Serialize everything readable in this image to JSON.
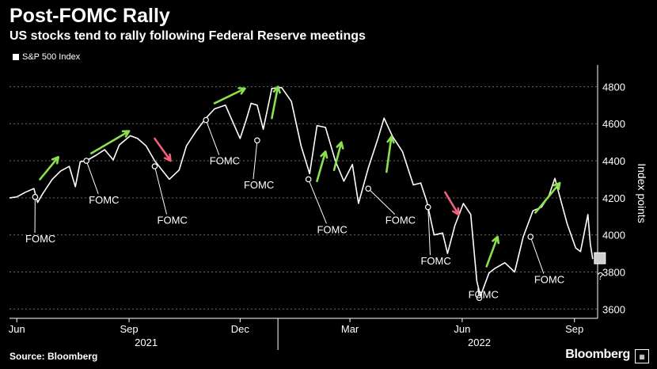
{
  "header": {
    "title": "Post-FOMC Rally",
    "subtitle": "US stocks tend to rally following Federal Reserve meetings"
  },
  "legend": {
    "label": "S&P 500 Index"
  },
  "footer": {
    "source": "Source: Bloomberg",
    "brand": "Bloomberg",
    "badge": "▦"
  },
  "colors": {
    "up_arrow": "#8be04e",
    "down_arrow": "#f0607a",
    "line": "#ffffff",
    "grid": "#6a6a6a"
  },
  "chart_data": {
    "type": "line",
    "ylabel": "Index points",
    "ylim": [
      3550,
      4900
    ],
    "yticks": [
      3600,
      3800,
      4000,
      4200,
      4400,
      4600,
      4800
    ],
    "x_tick_labels": [
      "Jun",
      "Sep",
      "Dec",
      "Mar",
      "Jun",
      "Sep"
    ],
    "x_ticks": [
      "2021-06-01",
      "2021-09-01",
      "2021-12-01",
      "2022-03-01",
      "2022-06-01",
      "2022-09-01"
    ],
    "year_labels": [
      {
        "text": "2021",
        "x": "2021-09-15"
      },
      {
        "text": "2022",
        "x": "2022-06-15"
      }
    ],
    "xlim": [
      "2021-05-26",
      "2022-09-20"
    ],
    "series": [
      {
        "name": "S&P 500 Index",
        "points": [
          [
            "2021-05-26",
            4200
          ],
          [
            "2021-06-01",
            4205
          ],
          [
            "2021-06-08",
            4230
          ],
          [
            "2021-06-15",
            4250
          ],
          [
            "2021-06-18",
            4175
          ],
          [
            "2021-06-22",
            4220
          ],
          [
            "2021-06-30",
            4300
          ],
          [
            "2021-07-07",
            4345
          ],
          [
            "2021-07-14",
            4370
          ],
          [
            "2021-07-19",
            4260
          ],
          [
            "2021-07-23",
            4395
          ],
          [
            "2021-07-28",
            4400
          ],
          [
            "2021-08-05",
            4430
          ],
          [
            "2021-08-12",
            4460
          ],
          [
            "2021-08-19",
            4405
          ],
          [
            "2021-08-24",
            4485
          ],
          [
            "2021-09-02",
            4535
          ],
          [
            "2021-09-08",
            4520
          ],
          [
            "2021-09-15",
            4480
          ],
          [
            "2021-09-22",
            4400
          ],
          [
            "2021-09-28",
            4350
          ],
          [
            "2021-10-04",
            4300
          ],
          [
            "2021-10-12",
            4350
          ],
          [
            "2021-10-18",
            4480
          ],
          [
            "2021-10-26",
            4560
          ],
          [
            "2021-11-03",
            4630
          ],
          [
            "2021-11-10",
            4680
          ],
          [
            "2021-11-19",
            4700
          ],
          [
            "2021-11-26",
            4595
          ],
          [
            "2021-12-01",
            4520
          ],
          [
            "2021-12-06",
            4620
          ],
          [
            "2021-12-10",
            4710
          ],
          [
            "2021-12-15",
            4700
          ],
          [
            "2021-12-20",
            4570
          ],
          [
            "2021-12-27",
            4790
          ],
          [
            "2022-01-04",
            4795
          ],
          [
            "2022-01-12",
            4720
          ],
          [
            "2022-01-20",
            4480
          ],
          [
            "2022-01-27",
            4330
          ],
          [
            "2022-02-02",
            4590
          ],
          [
            "2022-02-09",
            4580
          ],
          [
            "2022-02-17",
            4400
          ],
          [
            "2022-02-24",
            4290
          ],
          [
            "2022-03-03",
            4380
          ],
          [
            "2022-03-08",
            4170
          ],
          [
            "2022-03-16",
            4360
          ],
          [
            "2022-03-24",
            4520
          ],
          [
            "2022-03-29",
            4630
          ],
          [
            "2022-04-05",
            4530
          ],
          [
            "2022-04-13",
            4450
          ],
          [
            "2022-04-22",
            4270
          ],
          [
            "2022-04-28",
            4280
          ],
          [
            "2022-05-03",
            4180
          ],
          [
            "2022-05-09",
            4000
          ],
          [
            "2022-05-16",
            4010
          ],
          [
            "2022-05-20",
            3900
          ],
          [
            "2022-05-26",
            4050
          ],
          [
            "2022-06-02",
            4170
          ],
          [
            "2022-06-08",
            4110
          ],
          [
            "2022-06-13",
            3750
          ],
          [
            "2022-06-16",
            3670
          ],
          [
            "2022-06-23",
            3795
          ],
          [
            "2022-06-28",
            3820
          ],
          [
            "2022-07-06",
            3850
          ],
          [
            "2022-07-14",
            3800
          ],
          [
            "2022-07-21",
            3990
          ],
          [
            "2022-07-29",
            4130
          ],
          [
            "2022-08-05",
            4150
          ],
          [
            "2022-08-11",
            4210
          ],
          [
            "2022-08-16",
            4305
          ],
          [
            "2022-08-19",
            4230
          ],
          [
            "2022-08-26",
            4060
          ],
          [
            "2022-09-02",
            3930
          ],
          [
            "2022-09-06",
            3910
          ],
          [
            "2022-09-12",
            4110
          ],
          [
            "2022-09-14",
            3950
          ],
          [
            "2022-09-16",
            3870
          ]
        ]
      }
    ],
    "fomc_markers": [
      {
        "date": "2021-06-16",
        "value": 4205,
        "label": "FOMC",
        "label_at": [
          "2021-06-08",
          3960
        ]
      },
      {
        "date": "2021-07-28",
        "value": 4400,
        "label": "FOMC",
        "label_at": [
          "2021-07-30",
          4170
        ]
      },
      {
        "date": "2021-09-22",
        "value": 4370,
        "label": "FOMC",
        "label_at": [
          "2021-09-24",
          4060
        ]
      },
      {
        "date": "2021-11-03",
        "value": 4620,
        "label": "FOMC",
        "label_at": [
          "2021-11-06",
          4380
        ]
      },
      {
        "date": "2021-12-15",
        "value": 4510,
        "label": "FOMC",
        "label_at": [
          "2021-12-04",
          4250
        ]
      },
      {
        "date": "2022-01-26",
        "value": 4300,
        "label": "FOMC",
        "label_at": [
          "2022-02-02",
          4010
        ]
      },
      {
        "date": "2022-03-16",
        "value": 4250,
        "label": "FOMC",
        "label_at": [
          "2022-03-30",
          4060
        ]
      },
      {
        "date": "2022-05-04",
        "value": 4150,
        "label": "FOMC",
        "label_at": [
          "2022-04-28",
          3840
        ]
      },
      {
        "date": "2022-06-15",
        "value": 3660,
        "label": "FOMC",
        "label_at": [
          "2022-06-06",
          3660
        ]
      },
      {
        "date": "2022-07-27",
        "value": 3990,
        "label": "FOMC",
        "label_at": [
          "2022-07-30",
          3740
        ]
      }
    ],
    "arrows": [
      {
        "dir": "up",
        "from": [
          "2021-06-20",
          4300
        ],
        "to": [
          "2021-07-05",
          4420
        ]
      },
      {
        "dir": "up",
        "from": [
          "2021-08-01",
          4440
        ],
        "to": [
          "2021-09-01",
          4560
        ]
      },
      {
        "dir": "down",
        "from": [
          "2021-09-22",
          4520
        ],
        "to": [
          "2021-10-05",
          4400
        ]
      },
      {
        "dir": "up",
        "from": [
          "2021-11-10",
          4710
        ],
        "to": [
          "2021-12-05",
          4790
        ]
      },
      {
        "dir": "up",
        "from": [
          "2021-12-27",
          4630
        ],
        "to": [
          "2022-01-01",
          4800
        ]
      },
      {
        "dir": "up",
        "from": [
          "2022-02-02",
          4290
        ],
        "to": [
          "2022-02-09",
          4450
        ]
      },
      {
        "dir": "up",
        "from": [
          "2022-02-16",
          4350
        ],
        "to": [
          "2022-02-22",
          4500
        ]
      },
      {
        "dir": "up",
        "from": [
          "2022-03-31",
          4340
        ],
        "to": [
          "2022-04-04",
          4530
        ]
      },
      {
        "dir": "down",
        "from": [
          "2022-05-18",
          4230
        ],
        "to": [
          "2022-05-29",
          4110
        ]
      },
      {
        "dir": "up",
        "from": [
          "2022-06-21",
          3830
        ],
        "to": [
          "2022-06-30",
          3990
        ]
      },
      {
        "dir": "up",
        "from": [
          "2022-07-31",
          4120
        ],
        "to": [
          "2022-08-20",
          4280
        ]
      }
    ],
    "end_marker": {
      "label": "?"
    }
  }
}
